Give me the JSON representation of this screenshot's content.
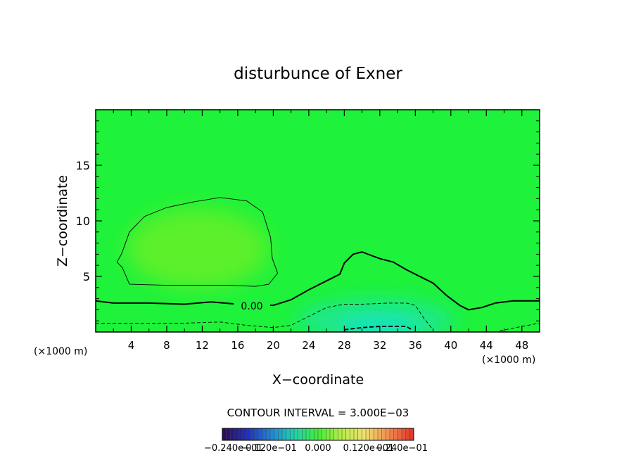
{
  "chart_data": {
    "type": "heatmap",
    "title": "disturbunce of Exner",
    "xlabel": "X−coordinate",
    "ylabel": "Z−coordinate",
    "x_unit_left": "(×1000 m)",
    "x_unit_right": "(×1000 m)",
    "xlim": [
      0,
      50
    ],
    "ylim": [
      0,
      20
    ],
    "x_ticks": [
      "4",
      "8",
      "12",
      "16",
      "20",
      "24",
      "28",
      "32",
      "36",
      "40",
      "44",
      "48"
    ],
    "y_ticks": [
      "5",
      "10",
      "15"
    ],
    "contour_interval_text": "CONTOUR INTERVAL = 3.000E−03",
    "contour_label": "0.00",
    "colorbar_labels": [
      "−0.240e−01",
      "−0.120e−01",
      "0.000",
      "0.120e−01",
      "0.240e−01"
    ],
    "colormap": [
      "#2a0f5c",
      "#1f2fc4",
      "#1f86d8",
      "#1fd3b0",
      "#40ee3a",
      "#b7ee46",
      "#f0e070",
      "#f09050",
      "#e03a2a"
    ],
    "colors": {
      "field_background": "#1ef23a",
      "warm_blob": "#5cf02c",
      "cool_low": "#1ce88a",
      "cool_core": "#18e2c8",
      "contour": "#000000"
    },
    "contours": [
      {
        "level": 0.0,
        "style": "solid-bold",
        "points": [
          [
            0,
            2.8
          ],
          [
            2,
            2.6
          ],
          [
            6,
            2.6
          ],
          [
            10,
            2.5
          ],
          [
            13,
            2.7
          ],
          [
            16,
            2.5
          ],
          [
            20,
            2.4
          ],
          [
            22,
            2.9
          ],
          [
            24,
            3.8
          ],
          [
            26,
            4.6
          ],
          [
            27.5,
            5.2
          ],
          [
            28,
            6.2
          ],
          [
            29,
            7.0
          ],
          [
            30,
            7.2
          ],
          [
            31,
            6.9
          ],
          [
            32,
            6.6
          ],
          [
            33.5,
            6.3
          ],
          [
            35,
            5.6
          ],
          [
            36.5,
            5.0
          ],
          [
            38,
            4.4
          ],
          [
            39.5,
            3.3
          ],
          [
            41,
            2.4
          ],
          [
            42,
            2.0
          ],
          [
            43.5,
            2.2
          ],
          [
            45,
            2.6
          ],
          [
            47,
            2.8
          ],
          [
            50,
            2.8
          ]
        ]
      },
      {
        "level": 0.003,
        "style": "solid-thin",
        "points": [
          [
            3.8,
            4.3
          ],
          [
            8,
            4.2
          ],
          [
            12,
            4.2
          ],
          [
            15,
            4.2
          ],
          [
            18,
            4.1
          ],
          [
            19.5,
            4.3
          ],
          [
            20.5,
            5.3
          ],
          [
            19.9,
            6.6
          ],
          [
            19.7,
            8.5
          ],
          [
            18.8,
            10.8
          ],
          [
            17,
            11.8
          ],
          [
            14,
            12.1
          ],
          [
            11,
            11.7
          ],
          [
            8,
            11.2
          ],
          [
            5.5,
            10.4
          ],
          [
            3.8,
            9.0
          ],
          [
            2.9,
            7.0
          ],
          [
            2.4,
            6.3
          ],
          [
            3.0,
            5.8
          ],
          [
            3.8,
            4.3
          ]
        ]
      },
      {
        "level": -0.003,
        "style": "dashed",
        "points": [
          [
            0,
            0.8
          ],
          [
            5,
            0.8
          ],
          [
            10,
            0.8
          ],
          [
            14,
            0.9
          ],
          [
            17,
            0.6
          ],
          [
            20,
            0.4
          ],
          [
            22,
            0.6
          ],
          [
            24,
            1.4
          ],
          [
            26,
            2.2
          ],
          [
            28,
            2.5
          ],
          [
            30,
            2.5
          ],
          [
            33,
            2.6
          ],
          [
            35,
            2.6
          ],
          [
            36,
            2.4
          ],
          [
            37,
            1.2
          ],
          [
            38,
            0.2
          ]
        ]
      },
      {
        "level": -0.003,
        "style": "dashed",
        "points": [
          [
            45.5,
            0.1
          ],
          [
            48,
            0.5
          ],
          [
            50,
            0.8
          ]
        ]
      },
      {
        "level": -0.006,
        "style": "dashed-bold",
        "points": [
          [
            28,
            0.2
          ],
          [
            30,
            0.4
          ],
          [
            32,
            0.5
          ],
          [
            35,
            0.5
          ],
          [
            35.6,
            0.2
          ]
        ]
      }
    ]
  }
}
